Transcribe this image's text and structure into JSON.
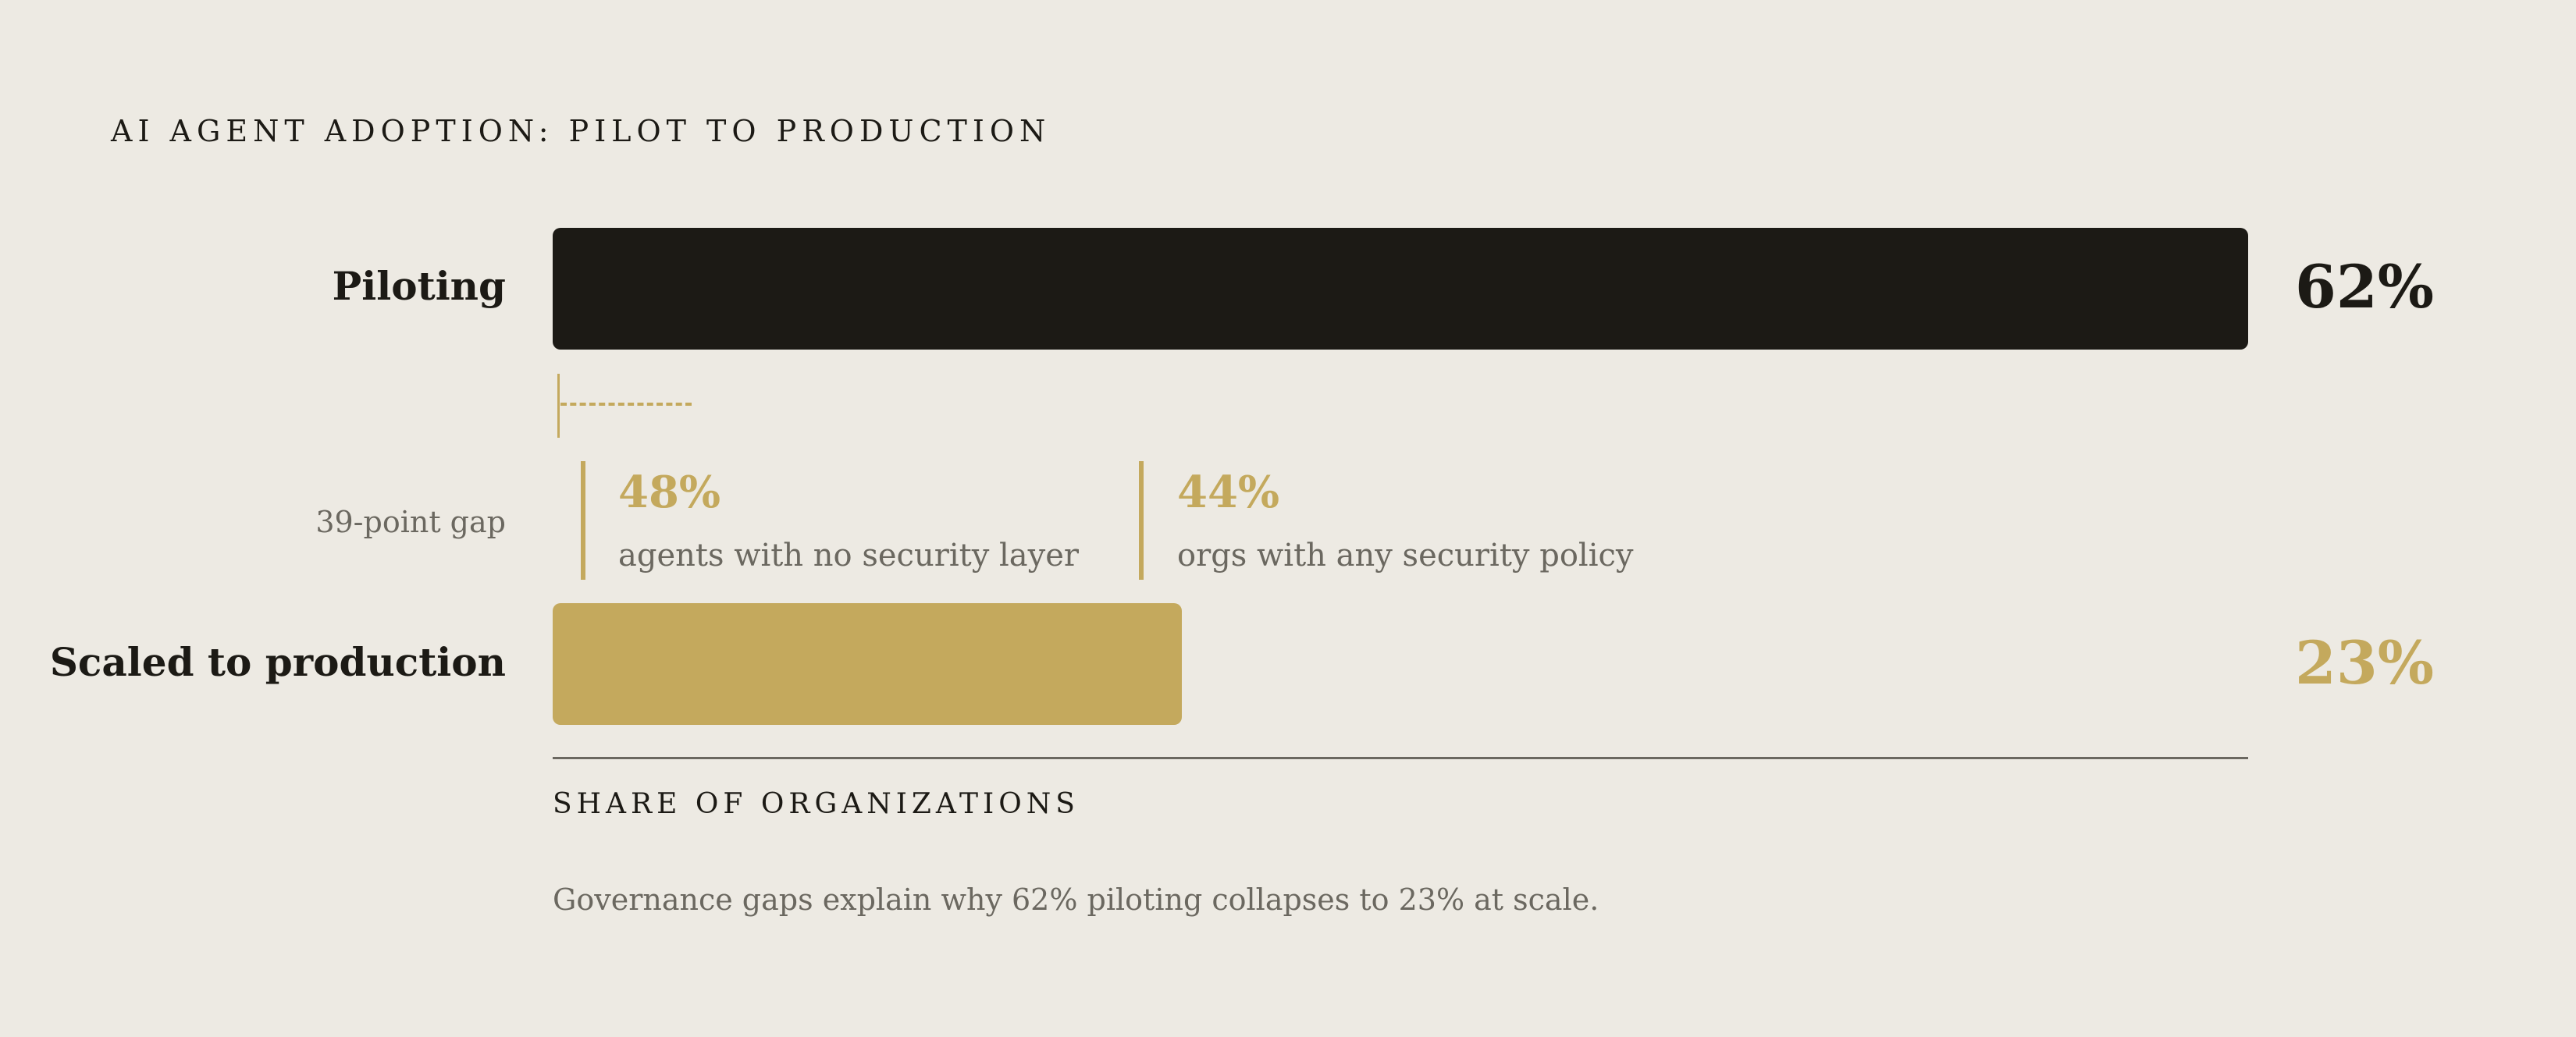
{
  "colors": {
    "background": "#edeae3",
    "piloting_bar": "#1c1a15",
    "scaled_bar": "#c4a95d",
    "accent": "#c4a95d",
    "muted_text": "#6b6860",
    "dark_text": "#1c1a15"
  },
  "title": "AI AGENT ADOPTION: PILOT TO PRODUCTION",
  "gap": {
    "label": "39-point gap",
    "stats": [
      {
        "value": "48%",
        "label": "agents with no security layer"
      },
      {
        "value": "44%",
        "label": "orgs with any security policy"
      }
    ]
  },
  "caption": "Governance gaps explain why 62% piloting collapses to 23% at scale.",
  "chart_data": {
    "type": "bar",
    "orientation": "horizontal",
    "title": "AI AGENT ADOPTION: PILOT TO PRODUCTION",
    "xlabel": "SHARE OF ORGANIZATIONS",
    "ylabel": "",
    "xlim": [
      0,
      100
    ],
    "grid": false,
    "categories": [
      "Piloting",
      "Scaled to production"
    ],
    "values": [
      62,
      23
    ],
    "value_labels": [
      "62%",
      "23%"
    ],
    "annotations": [
      "39-point gap",
      "48% agents with no security layer",
      "44% orgs with any security policy"
    ]
  }
}
